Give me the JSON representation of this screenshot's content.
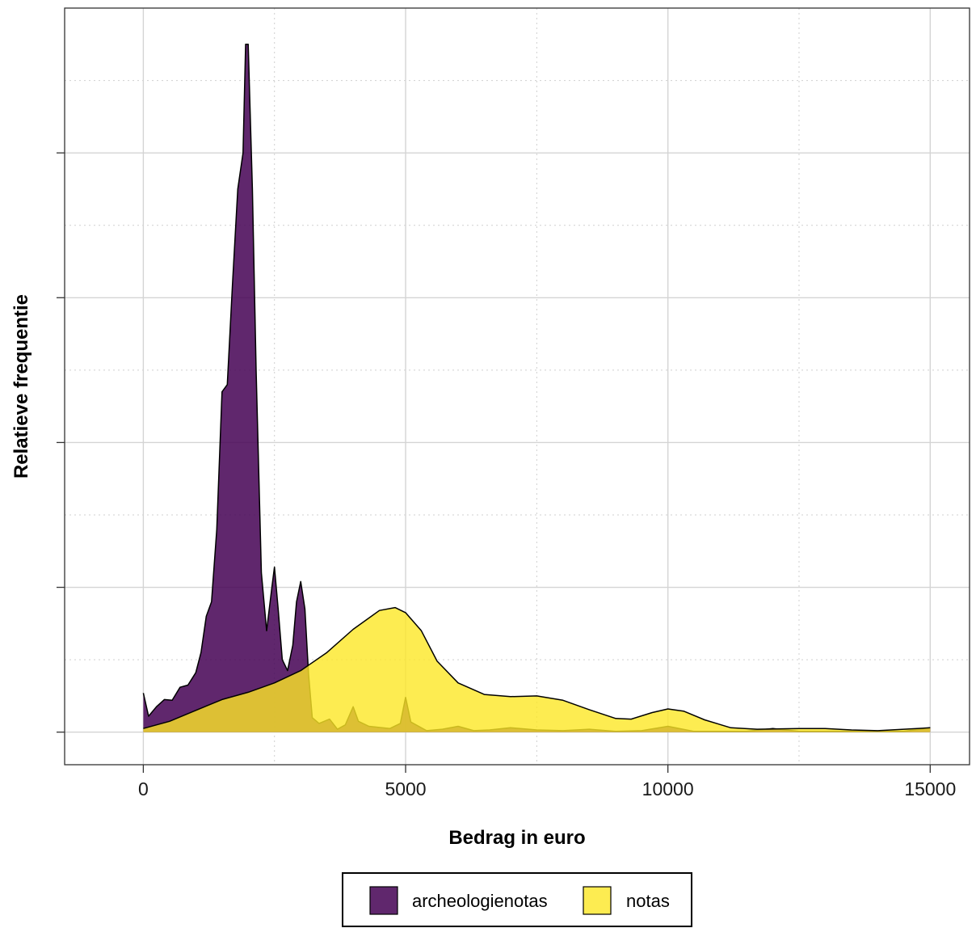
{
  "chart_data": {
    "type": "area",
    "title": "",
    "xlabel": "Bedrag in euro",
    "ylabel": "Relatieve frequentie",
    "xlim": [
      -1500,
      15750
    ],
    "ylim": [
      -0.045,
      1.0
    ],
    "x_major_ticks": [
      0,
      5000,
      10000,
      15000
    ],
    "x_tick_labels": [
      "0",
      "5000",
      "10000",
      "15000"
    ],
    "x_minor_ticks": [
      2500,
      7500,
      12500
    ],
    "y_major_ticks": [
      0,
      0.2,
      0.4,
      0.6,
      0.8
    ],
    "y_minor_ticks": [
      0.1,
      0.3,
      0.5,
      0.7,
      0.9
    ],
    "y_tick_labels_shown": false,
    "grid": true,
    "legend_position": "bottom",
    "series": [
      {
        "name": "archeologienotas",
        "color": "#440154",
        "opacity": 0.85,
        "points": [
          [
            0,
            0.054
          ],
          [
            100,
            0.022
          ],
          [
            250,
            0.035
          ],
          [
            400,
            0.045
          ],
          [
            550,
            0.044
          ],
          [
            700,
            0.062
          ],
          [
            850,
            0.065
          ],
          [
            1000,
            0.082
          ],
          [
            1100,
            0.11
          ],
          [
            1200,
            0.16
          ],
          [
            1300,
            0.18
          ],
          [
            1400,
            0.28
          ],
          [
            1500,
            0.47
          ],
          [
            1600,
            0.48
          ],
          [
            1700,
            0.62
          ],
          [
            1800,
            0.75
          ],
          [
            1900,
            0.8
          ],
          [
            1950,
            0.95
          ],
          [
            2000,
            0.95
          ],
          [
            2080,
            0.75
          ],
          [
            2150,
            0.5
          ],
          [
            2250,
            0.22
          ],
          [
            2350,
            0.14
          ],
          [
            2450,
            0.2
          ],
          [
            2500,
            0.228
          ],
          [
            2570,
            0.17
          ],
          [
            2650,
            0.1
          ],
          [
            2750,
            0.085
          ],
          [
            2850,
            0.12
          ],
          [
            2920,
            0.18
          ],
          [
            3000,
            0.208
          ],
          [
            3080,
            0.17
          ],
          [
            3150,
            0.08
          ],
          [
            3220,
            0.02
          ],
          [
            3350,
            0.012
          ],
          [
            3550,
            0.018
          ],
          [
            3700,
            0.004
          ],
          [
            3850,
            0.01
          ],
          [
            4000,
            0.035
          ],
          [
            4100,
            0.015
          ],
          [
            4300,
            0.008
          ],
          [
            4700,
            0.005
          ],
          [
            4900,
            0.012
          ],
          [
            5000,
            0.048
          ],
          [
            5100,
            0.014
          ],
          [
            5400,
            0.002
          ],
          [
            5700,
            0.004
          ],
          [
            6000,
            0.008
          ],
          [
            6300,
            0.002
          ],
          [
            6600,
            0.003
          ],
          [
            7000,
            0.006
          ],
          [
            7500,
            0.003
          ],
          [
            8000,
            0.002
          ],
          [
            8500,
            0.004
          ],
          [
            9000,
            0.001
          ],
          [
            9500,
            0.002
          ],
          [
            10000,
            0.008
          ],
          [
            10500,
            0.001
          ],
          [
            11000,
            0.001
          ],
          [
            11500,
            0.001
          ],
          [
            12000,
            0.005
          ],
          [
            12500,
            0.001
          ],
          [
            13500,
            0.001
          ],
          [
            14500,
            0.001
          ],
          [
            15000,
            0.006
          ]
        ]
      },
      {
        "name": "notas",
        "color": "#fde725",
        "opacity": 0.8,
        "points": [
          [
            0,
            0.005
          ],
          [
            500,
            0.015
          ],
          [
            1000,
            0.03
          ],
          [
            1500,
            0.045
          ],
          [
            2000,
            0.055
          ],
          [
            2500,
            0.068
          ],
          [
            3000,
            0.085
          ],
          [
            3500,
            0.11
          ],
          [
            4000,
            0.142
          ],
          [
            4500,
            0.168
          ],
          [
            4800,
            0.172
          ],
          [
            5000,
            0.165
          ],
          [
            5300,
            0.14
          ],
          [
            5600,
            0.098
          ],
          [
            6000,
            0.068
          ],
          [
            6500,
            0.052
          ],
          [
            7000,
            0.049
          ],
          [
            7500,
            0.05
          ],
          [
            8000,
            0.044
          ],
          [
            8500,
            0.031
          ],
          [
            9000,
            0.019
          ],
          [
            9300,
            0.018
          ],
          [
            9700,
            0.027
          ],
          [
            10000,
            0.032
          ],
          [
            10300,
            0.029
          ],
          [
            10700,
            0.017
          ],
          [
            11200,
            0.006
          ],
          [
            11700,
            0.004
          ],
          [
            12500,
            0.005
          ],
          [
            13000,
            0.005
          ],
          [
            13500,
            0.003
          ],
          [
            14000,
            0.002
          ],
          [
            14500,
            0.004
          ],
          [
            15000,
            0.006
          ]
        ]
      }
    ]
  }
}
